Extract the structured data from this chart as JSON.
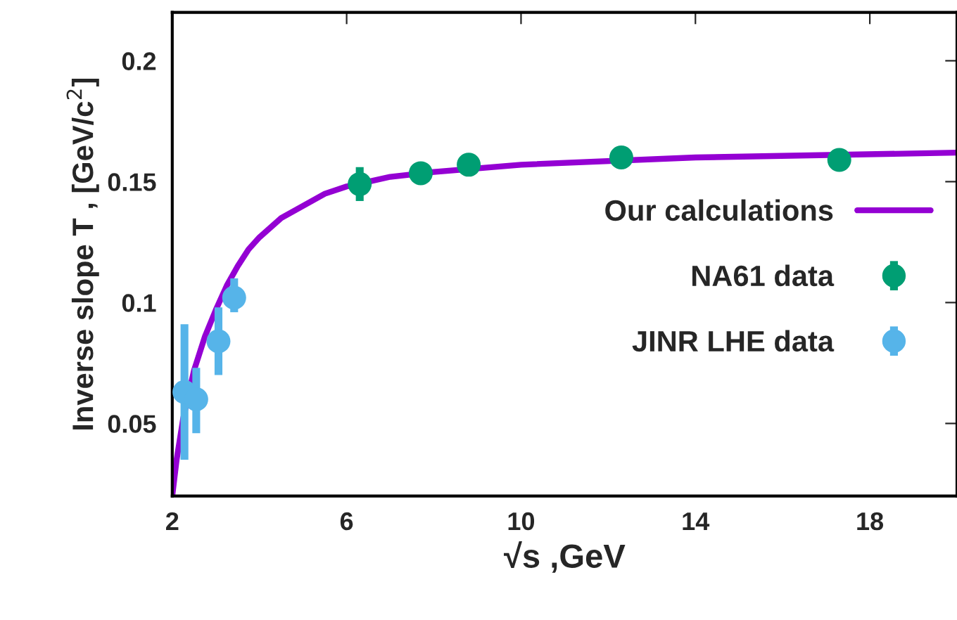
{
  "chart_data": {
    "type": "scatter",
    "xlabel": "√s ,GeV",
    "ylabel": "Inverse slope T , [GeV/c$^{2}$]",
    "xlim": [
      2,
      20
    ],
    "xticks": [
      2,
      6,
      10,
      14,
      18
    ],
    "ylim": [
      0.02,
      0.22
    ],
    "yticks": [
      0.05,
      0.1,
      0.15,
      0.2
    ],
    "grid": false,
    "legend": "right",
    "series": [
      {
        "name": "Our calculations",
        "type": "line",
        "marker": "none",
        "color": "#9400d3",
        "x": [
          2.0,
          2.1,
          2.25,
          2.5,
          2.75,
          3.0,
          3.25,
          3.5,
          3.75,
          4.0,
          4.5,
          5.0,
          5.5,
          6.0,
          7.0,
          8.0,
          10.0,
          14.0,
          20.0
        ],
        "values": [
          0.02,
          0.035,
          0.052,
          0.072,
          0.086,
          0.097,
          0.107,
          0.115,
          0.122,
          0.127,
          0.135,
          0.14,
          0.145,
          0.148,
          0.152,
          0.154,
          0.157,
          0.16,
          0.162
        ]
      },
      {
        "name": "NA61 data",
        "marker": "circle",
        "color": "#009e73",
        "x": [
          6.3,
          7.7,
          8.8,
          12.3,
          17.3
        ],
        "values": [
          0.149,
          0.1535,
          0.157,
          0.16,
          0.159
        ],
        "errors": [
          0.007,
          null,
          null,
          null,
          null
        ]
      },
      {
        "name": "JINR LHE data",
        "marker": "circle",
        "color": "#56b4e9",
        "x": [
          2.28,
          2.55,
          3.06,
          3.42
        ],
        "values": [
          0.063,
          0.06,
          0.084,
          0.102
        ],
        "errors": [
          [
            0.035,
            0.091
          ],
          [
            0.046,
            0.073
          ],
          [
            0.07,
            0.098
          ],
          [
            0.096,
            0.11
          ]
        ]
      }
    ]
  }
}
